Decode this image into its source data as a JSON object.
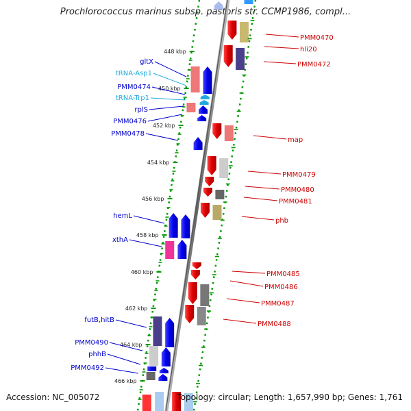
{
  "title": "Prochlorococcus marinus subsp. pastoris str. CCMP1986, compl...",
  "footer": {
    "accession": "Accession: NC_005072",
    "summary": "Topology: circular; Length: 1,657,990 bp; Genes: 1,761"
  },
  "ruler": [
    {
      "label": "448 kbp"
    },
    {
      "label": "450 kbp"
    },
    {
      "label": "452 kbp"
    },
    {
      "label": "454 kbp"
    },
    {
      "label": "456 kbp"
    },
    {
      "label": "458 kbp"
    },
    {
      "label": "460 kbp"
    },
    {
      "label": "462 kbp"
    },
    {
      "label": "464 kbp"
    },
    {
      "label": "466 kbp"
    }
  ],
  "colors": {
    "forward_gene": "#0000ee",
    "reverse_gene": "#ee0000",
    "trna": "#22aadd",
    "backbone": "#888888",
    "ruler_dots": "#009900"
  },
  "left_labels": [
    {
      "text": "gltX",
      "color": "#0000cc"
    },
    {
      "text": "tRNA-Asp1",
      "color": "#22aadd"
    },
    {
      "text": "PMM0474",
      "color": "#0000cc"
    },
    {
      "text": "tRNA-Trp1",
      "color": "#22aadd"
    },
    {
      "text": "rplS",
      "color": "#0000cc"
    },
    {
      "text": "PMM0476",
      "color": "#0000cc"
    },
    {
      "text": "PMM0478",
      "color": "#0000cc"
    },
    {
      "text": "hemL",
      "color": "#0000cc"
    },
    {
      "text": "xthA",
      "color": "#0000cc"
    },
    {
      "text": "futB,hitB",
      "color": "#0000cc"
    },
    {
      "text": "PMM0490",
      "color": "#0000cc"
    },
    {
      "text": "phhB",
      "color": "#0000cc"
    },
    {
      "text": "PMM0492",
      "color": "#0000cc"
    }
  ],
  "right_labels": [
    {
      "text": "PMM0470",
      "color": "#cc0000"
    },
    {
      "text": "hli20",
      "color": "#cc0000"
    },
    {
      "text": "PMM0472",
      "color": "#cc0000"
    },
    {
      "text": "map",
      "color": "#cc0000"
    },
    {
      "text": "PMM0479",
      "color": "#cc0000"
    },
    {
      "text": "PMM0480",
      "color": "#cc0000"
    },
    {
      "text": "PMM0481",
      "color": "#cc0000"
    },
    {
      "text": "phb",
      "color": "#cc0000"
    },
    {
      "text": "PMM0485",
      "color": "#cc0000"
    },
    {
      "text": "PMM0486",
      "color": "#cc0000"
    },
    {
      "text": "PMM0487",
      "color": "#cc0000"
    },
    {
      "text": "PMM0488",
      "color": "#cc0000"
    }
  ]
}
